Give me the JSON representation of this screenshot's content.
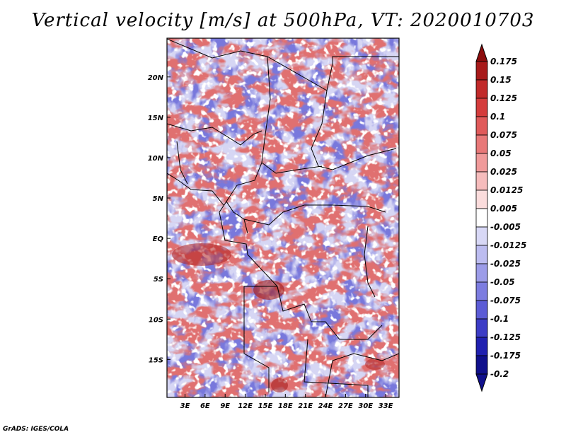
{
  "chart_data": {
    "type": "heatmap",
    "title": "Vertical velocity [m/s] at 500hPa, VT: 2020010703",
    "xlabel": "",
    "ylabel": "",
    "x_ticks": [
      "3E",
      "6E",
      "9E",
      "12E",
      "15E",
      "18E",
      "21E",
      "24E",
      "27E",
      "30E",
      "33E"
    ],
    "x_tick_values": [
      3,
      6,
      9,
      12,
      15,
      18,
      21,
      24,
      27,
      30,
      33
    ],
    "y_ticks": [
      "20N",
      "15N",
      "10N",
      "5N",
      "EQ",
      "5S",
      "10S",
      "15S"
    ],
    "y_tick_values": [
      20,
      15,
      10,
      5,
      0,
      -5,
      -10,
      -15
    ],
    "xlim": [
      0.3,
      35.0
    ],
    "ylim": [
      -19.7,
      24.8
    ],
    "colorbar": {
      "labels": [
        "0.175",
        "0.15",
        "0.125",
        "0.1",
        "0.075",
        "0.05",
        "0.025",
        "0.0125",
        "0.005",
        "-0.005",
        "-0.0125",
        "-0.025",
        "-0.05",
        "-0.075",
        "-0.1",
        "-0.125",
        "-0.175",
        "-0.2"
      ],
      "colors": [
        "#8c0d0d",
        "#a81a1a",
        "#c12a2a",
        "#d43c3c",
        "#e05a5a",
        "#e87878",
        "#f09a9a",
        "#f6bcbc",
        "#fbdcdc",
        "#ffffff",
        "#d8d8f6",
        "#bcbcf0",
        "#9c9ce8",
        "#7c7ce0",
        "#5c5cd6",
        "#3c3cc6",
        "#2020b0",
        "#10108c"
      ]
    }
  },
  "footer": {
    "credit": "GrADS: IGES/COLA"
  }
}
